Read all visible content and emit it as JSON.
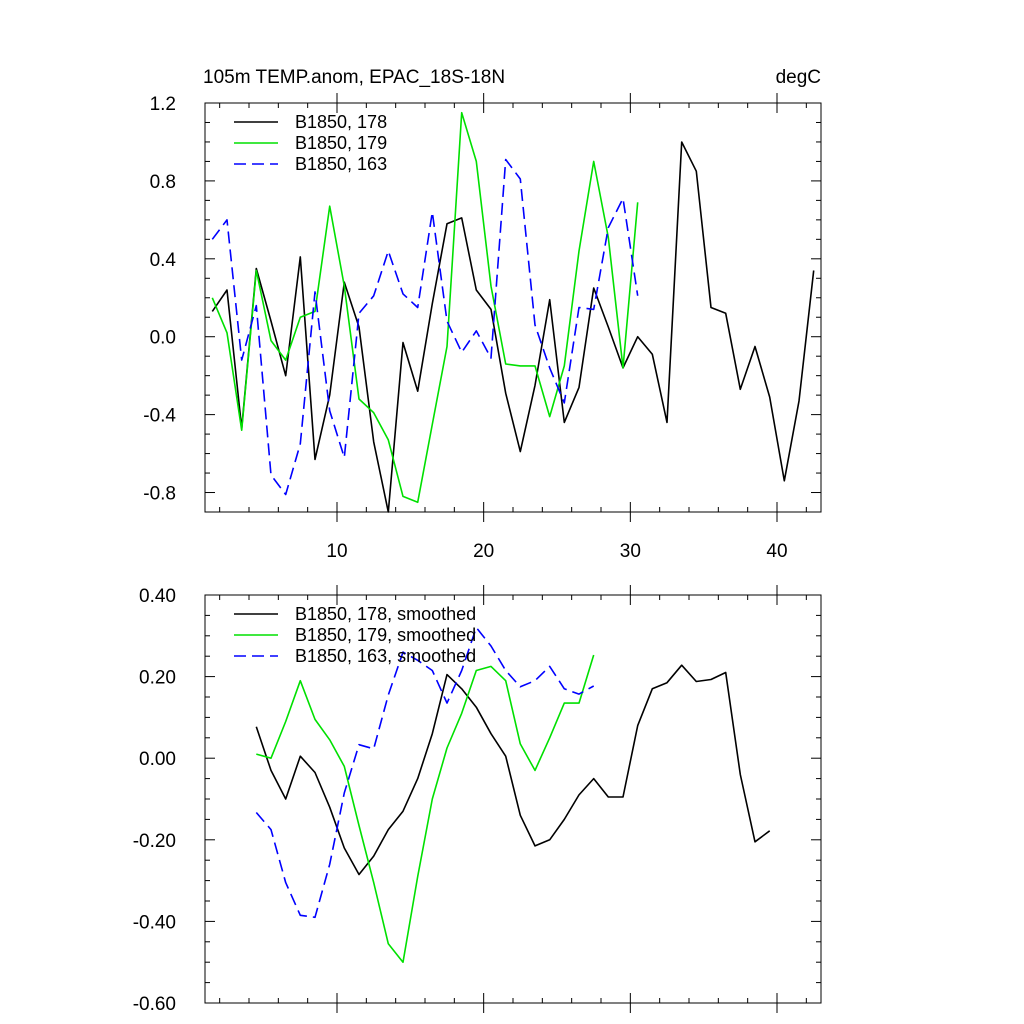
{
  "header": {
    "title": "105m TEMP.anom, EPAC_18S-18N",
    "units": "degC"
  },
  "colors": {
    "s178": "#000000",
    "s179": "#00e000",
    "s163": "#0000ff"
  },
  "chart_data": [
    {
      "type": "line",
      "title": "105m TEMP.anom, EPAC_18S-18N",
      "units": "degC",
      "xlim": [
        1,
        43
      ],
      "ylim": [
        -0.9,
        1.2
      ],
      "x_ticks": [
        10,
        20,
        30,
        40
      ],
      "x_tick_labels": [
        "10",
        "20",
        "30",
        "40"
      ],
      "y_ticks": [
        -0.8,
        -0.4,
        0.0,
        0.4,
        0.8,
        1.2
      ],
      "y_tick_labels": [
        "-0.8",
        "-0.4",
        "0.0",
        "0.4",
        "0.8",
        "1.2"
      ],
      "legend_position": "top-left",
      "series": [
        {
          "name": "B1850, 178",
          "dash": "solid",
          "x": [
            1.5,
            2.5,
            3.5,
            4.5,
            5.5,
            6.5,
            7.5,
            8.5,
            9.5,
            10.5,
            11.5,
            12.5,
            13.5,
            14.5,
            15.5,
            16.5,
            17.5,
            18.5,
            19.5,
            20.5,
            21.5,
            22.5,
            23.5,
            24.5,
            25.5,
            26.5,
            27.5,
            28.5,
            29.5,
            30.5,
            31.5,
            32.5,
            33.5,
            34.5,
            35.5,
            36.5,
            37.5,
            38.5,
            39.5,
            40.5,
            41.5,
            42.5
          ],
          "y": [
            0.13,
            0.24,
            -0.47,
            0.35,
            0.08,
            -0.2,
            0.41,
            -0.63,
            -0.3,
            0.28,
            0.05,
            -0.54,
            -0.9,
            -0.03,
            -0.28,
            0.17,
            0.58,
            0.61,
            0.24,
            0.14,
            -0.29,
            -0.59,
            -0.25,
            0.19,
            -0.44,
            -0.26,
            0.25,
            0.05,
            -0.16,
            0.0,
            -0.09,
            -0.44,
            1.0,
            0.85,
            0.15,
            0.12,
            -0.27,
            -0.05,
            -0.31,
            -0.74,
            -0.33,
            0.34
          ]
        },
        {
          "name": "B1850, 179",
          "dash": "solid",
          "x": [
            1.5,
            2.5,
            3.5,
            4.5,
            5.5,
            6.5,
            7.5,
            8.5,
            9.5,
            10.5,
            11.5,
            12.5,
            13.5,
            14.5,
            15.5,
            16.5,
            17.5,
            18.5,
            19.5,
            20.5,
            21.5,
            22.5,
            23.5,
            24.5,
            25.5,
            26.5,
            27.5,
            28.5,
            29.5,
            30.5
          ],
          "y": [
            0.2,
            0.02,
            -0.48,
            0.34,
            -0.02,
            -0.12,
            0.1,
            0.13,
            0.67,
            0.26,
            -0.32,
            -0.39,
            -0.53,
            -0.82,
            -0.85,
            -0.45,
            -0.05,
            1.15,
            0.9,
            0.26,
            -0.14,
            -0.15,
            -0.15,
            -0.41,
            -0.15,
            0.44,
            0.9,
            0.51,
            -0.16,
            0.69
          ]
        },
        {
          "name": "B1850, 163",
          "dash": "dashed",
          "x": [
            1.5,
            2.5,
            3.5,
            4.5,
            5.5,
            6.5,
            7.5,
            8.5,
            9.5,
            10.5,
            11.5,
            12.5,
            13.5,
            14.5,
            15.5,
            16.5,
            17.5,
            18.5,
            19.5,
            20.5,
            21.5,
            22.5,
            23.5,
            24.5,
            25.5,
            26.5,
            27.5,
            28.5,
            29.5,
            30.5
          ],
          "y": [
            0.5,
            0.6,
            -0.12,
            0.16,
            -0.71,
            -0.81,
            -0.55,
            0.23,
            -0.38,
            -0.62,
            0.12,
            0.21,
            0.44,
            0.22,
            0.15,
            0.64,
            0.08,
            -0.08,
            0.03,
            -0.11,
            0.91,
            0.81,
            0.06,
            -0.16,
            -0.34,
            0.15,
            0.14,
            0.56,
            0.71,
            0.21
          ]
        }
      ]
    },
    {
      "type": "line",
      "xlim": [
        1,
        43
      ],
      "ylim": [
        -0.6,
        0.4
      ],
      "x_ticks": [
        10,
        20,
        30,
        40
      ],
      "x_tick_labels": [],
      "y_ticks": [
        -0.6,
        -0.4,
        -0.2,
        0.0,
        0.2,
        0.4
      ],
      "y_tick_labels": [
        "-0.60",
        "-0.40",
        "-0.20",
        "0.00",
        "0.20",
        "0.40"
      ],
      "legend_position": "top-left",
      "series": [
        {
          "name": "B1850, 178, smoothed",
          "dash": "solid",
          "x": [
            4.5,
            5.5,
            6.5,
            7.5,
            8.5,
            9.5,
            10.5,
            11.5,
            12.5,
            13.5,
            14.5,
            15.5,
            16.5,
            17.5,
            18.5,
            19.5,
            20.5,
            21.5,
            22.5,
            23.5,
            24.5,
            25.5,
            26.5,
            27.5,
            28.5,
            29.5,
            30.5,
            31.5,
            32.5,
            33.5,
            34.5,
            35.5,
            36.5,
            37.5,
            38.5,
            39.5
          ],
          "y": [
            0.077,
            -0.03,
            -0.1,
            0.005,
            -0.035,
            -0.12,
            -0.22,
            -0.285,
            -0.24,
            -0.175,
            -0.13,
            -0.05,
            0.06,
            0.205,
            0.17,
            0.125,
            0.06,
            0.005,
            -0.14,
            -0.215,
            -0.2,
            -0.15,
            -0.09,
            -0.05,
            -0.095,
            -0.095,
            0.08,
            0.17,
            0.185,
            0.228,
            0.188,
            0.193,
            0.21,
            -0.04,
            -0.205,
            -0.178
          ]
        },
        {
          "name": "B1850, 179, smoothed",
          "dash": "solid",
          "x": [
            4.5,
            5.5,
            6.5,
            7.5,
            8.5,
            9.5,
            10.5,
            11.5,
            12.5,
            13.5,
            14.5,
            15.5,
            16.5,
            17.5,
            18.5,
            19.5,
            20.5,
            21.5,
            22.5,
            23.5,
            24.5,
            25.5,
            26.5,
            27.5
          ],
          "y": [
            0.01,
            0.0,
            0.09,
            0.19,
            0.095,
            0.045,
            -0.02,
            -0.165,
            -0.305,
            -0.455,
            -0.5,
            -0.29,
            -0.1,
            0.025,
            0.11,
            0.215,
            0.225,
            0.19,
            0.035,
            -0.03,
            0.05,
            0.135,
            0.135,
            0.253
          ]
        },
        {
          "name": "B1850, 163, smoothed",
          "dash": "dashed",
          "x": [
            4.5,
            5.5,
            6.5,
            7.5,
            8.5,
            9.5,
            10.5,
            11.5,
            12.5,
            13.5,
            14.5,
            15.5,
            16.5,
            17.5,
            18.5,
            19.5,
            20.5,
            21.5,
            22.5,
            23.5,
            24.5,
            25.5,
            26.5,
            27.5
          ],
          "y": [
            -0.133,
            -0.175,
            -0.305,
            -0.385,
            -0.39,
            -0.26,
            -0.085,
            0.033,
            0.023,
            0.155,
            0.26,
            0.24,
            0.215,
            0.135,
            0.215,
            0.32,
            0.275,
            0.215,
            0.175,
            0.19,
            0.225,
            0.17,
            0.157,
            0.177
          ]
        }
      ]
    }
  ]
}
